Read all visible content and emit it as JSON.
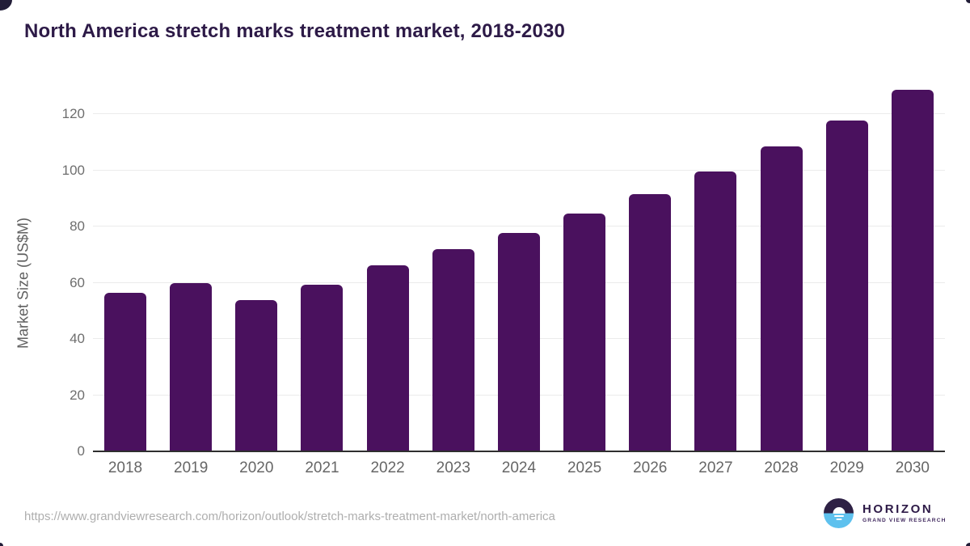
{
  "title": "North America stretch marks treatment market, 2018-2030",
  "chart_data": {
    "type": "bar",
    "title": "North America stretch marks treatment market, 2018-2030",
    "categories": [
      "2018",
      "2019",
      "2020",
      "2021",
      "2022",
      "2023",
      "2024",
      "2025",
      "2026",
      "2027",
      "2028",
      "2029",
      "2030"
    ],
    "values": [
      56.4,
      59.9,
      53.8,
      59.2,
      66.3,
      72.0,
      77.7,
      84.5,
      91.5,
      99.6,
      108.4,
      117.8,
      128.6
    ],
    "xlabel": "",
    "ylabel": "Market Size (US$M)",
    "ylim": [
      0,
      130
    ],
    "yticks": [
      0,
      20,
      40,
      60,
      80,
      100,
      120
    ],
    "grid": true,
    "legend": "none",
    "bar_color": "#4a115e"
  },
  "footer": {
    "source_url": "https://www.grandviewresearch.com/horizon/outlook/stretch-marks-treatment-market/north-america",
    "logo": {
      "name": "HORIZON",
      "subtitle": "GRAND VIEW RESEARCH"
    }
  },
  "colors": {
    "bar": "#4a115e",
    "title_text": "#2d1a47",
    "axis_text": "#6e6e6e",
    "x_label_text": "#666666",
    "gridline": "#ebebeb",
    "axis_line": "#2f2f2f",
    "url_text": "#aeaeae",
    "logo_dark": "#2e2145",
    "logo_blue": "#5ec1ee",
    "corner_mark": "#221d38"
  }
}
